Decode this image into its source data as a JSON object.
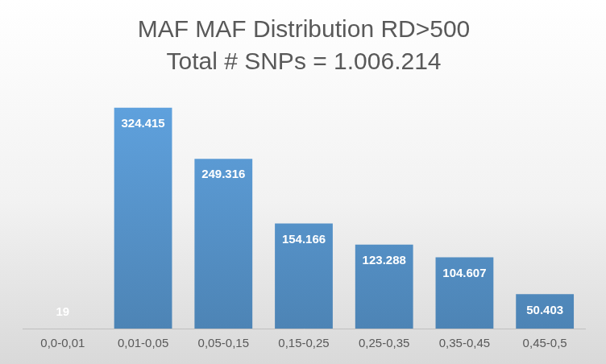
{
  "chart_data": {
    "type": "bar",
    "title": "MAF MAF Distribution RD>500",
    "subtitle": "Total # SNPs = 1.006.214",
    "categories": [
      "0,0-0,01",
      "0,01-0,05",
      "0,05-0,15",
      "0,15-0,25",
      "0,25-0,35",
      "0,35-0,45",
      "0,45-0,5"
    ],
    "values": [
      19,
      324415,
      249316,
      154166,
      123288,
      104607,
      50403
    ],
    "value_labels": [
      "19",
      "324.415",
      "249.316",
      "154.166",
      "123.288",
      "104.607",
      "50.403"
    ],
    "color": "#5b9bd5",
    "ylim": [
      0,
      350000
    ],
    "grid": false,
    "data_labels": true,
    "tick_labels": "x"
  }
}
